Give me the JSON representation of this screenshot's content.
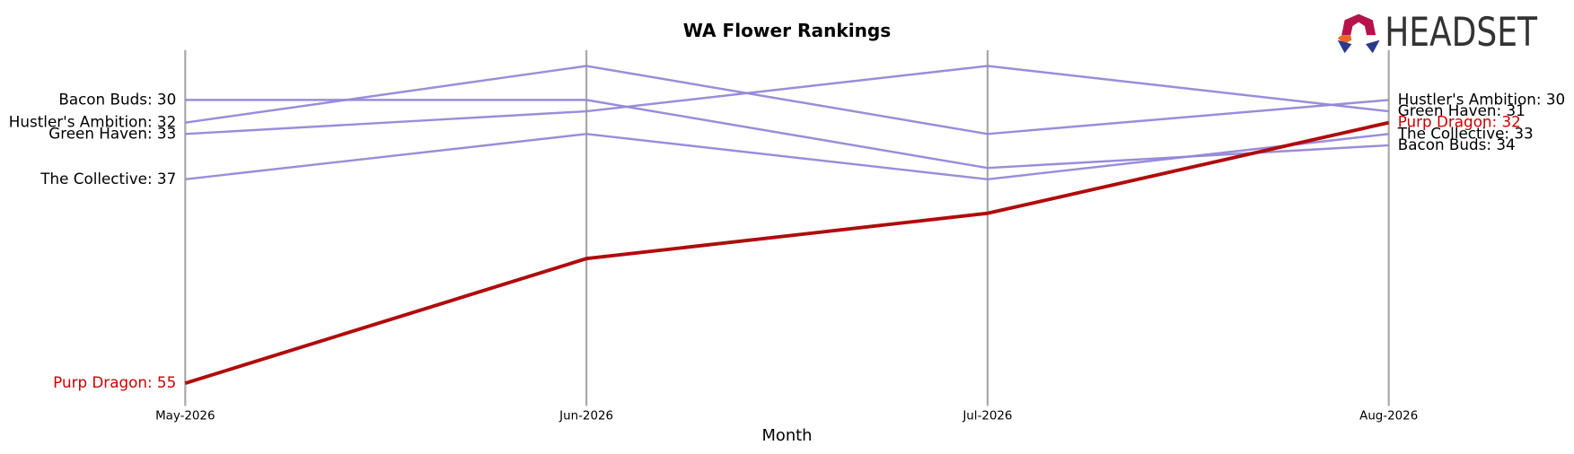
{
  "chart_data": {
    "type": "line",
    "title": "WA Flower Rankings",
    "xlabel": "Month",
    "logo": "HEADSET",
    "categories": [
      "May-2026",
      "Jun-2026",
      "Jul-2026",
      "Aug-2026"
    ],
    "ylim": [
      57,
      25.6
    ],
    "series": [
      {
        "name": "Bacon Buds",
        "color": "#9487d8",
        "values": [
          30,
          30,
          36,
          34
        ],
        "value_labels": [
          "Bacon Buds: 30",
          null,
          null,
          "Bacon Buds: 34"
        ],
        "label_color": "#000000"
      },
      {
        "name": "Hustler's Ambition",
        "color": "#9487d8",
        "values": [
          32,
          27,
          33,
          30
        ],
        "value_labels": [
          "Hustler's Ambition: 32",
          null,
          null,
          "Hustler's Ambition: 30"
        ],
        "label_color": "#000000"
      },
      {
        "name": "Green Haven",
        "color": "#9487d8",
        "values": [
          33,
          31,
          27,
          31
        ],
        "value_labels": [
          "Green Haven: 33",
          null,
          null,
          "Green Haven: 31"
        ],
        "label_color": "#000000"
      },
      {
        "name": "The Collective",
        "color": "#9487d8",
        "values": [
          37,
          33,
          37,
          33
        ],
        "value_labels": [
          "The Collective: 37",
          null,
          null,
          "The Collective: 33"
        ],
        "label_color": "#000000"
      },
      {
        "name": "Purp Dragon",
        "color": "#b00b0b",
        "values": [
          55,
          44,
          40,
          32
        ],
        "value_labels": [
          "Purp Dragon: 55",
          null,
          null,
          "Purp Dragon: 32"
        ],
        "label_color": "#cc0000"
      }
    ]
  }
}
